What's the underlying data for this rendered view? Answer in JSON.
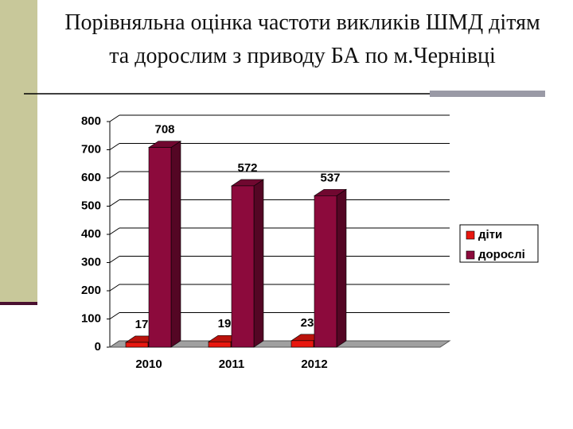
{
  "chart_data": {
    "type": "bar",
    "title": "Порівняльна оцінка частоти викликів ШМД дітям та дорослим з приводу БА по м.Чернівці",
    "categories": [
      "2010",
      "2011",
      "2012"
    ],
    "series": [
      {
        "name": "діти",
        "color": "#e8170f",
        "values": [
          17,
          19,
          23
        ]
      },
      {
        "name": "дорослі",
        "color": "#8c0a3c",
        "values": [
          708,
          572,
          537
        ]
      }
    ],
    "ylim": [
      0,
      800
    ],
    "yticks": [
      0,
      100,
      200,
      300,
      400,
      500,
      600,
      700,
      800
    ],
    "grid": true,
    "legend": "right"
  }
}
